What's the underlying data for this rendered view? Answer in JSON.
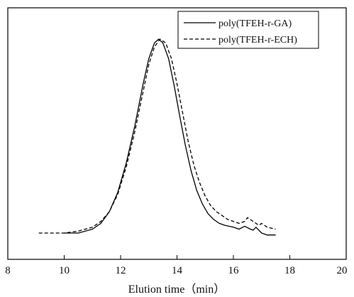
{
  "chart_data": {
    "type": "line",
    "title": "",
    "xlabel": "Elution time（min）",
    "ylabel": "",
    "xlim": [
      8,
      20
    ],
    "xticks": [
      8,
      10,
      12,
      14,
      16,
      18,
      20
    ],
    "tick_labels": [
      "8",
      "10",
      "12",
      "14",
      "16",
      "18",
      "20"
    ],
    "ylim": [
      0,
      1.05
    ],
    "grid": false,
    "legend": "top-right",
    "series": [
      {
        "name": "poly(TFEH-r-GA)",
        "style": "solid",
        "color": "#000000",
        "x": [
          10.0,
          10.5,
          11.0,
          11.3,
          11.6,
          11.9,
          12.2,
          12.5,
          12.8,
          13.0,
          13.2,
          13.35,
          13.5,
          13.7,
          13.9,
          14.1,
          14.3,
          14.5,
          14.7,
          14.9,
          15.1,
          15.3,
          15.5,
          15.7,
          16.0,
          16.2,
          16.4,
          16.6,
          16.7,
          16.8,
          17.0,
          17.2,
          17.5
        ],
        "y": [
          0.0,
          0.0,
          0.02,
          0.05,
          0.11,
          0.21,
          0.36,
          0.55,
          0.77,
          0.9,
          0.98,
          1.0,
          0.98,
          0.9,
          0.76,
          0.6,
          0.45,
          0.32,
          0.22,
          0.15,
          0.1,
          0.07,
          0.05,
          0.04,
          0.03,
          0.02,
          0.035,
          0.02,
          0.015,
          0.03,
          0.0,
          -0.01,
          -0.01
        ]
      },
      {
        "name": "poly(TFEH-r-ECH)",
        "style": "dashed",
        "color": "#000000",
        "x": [
          9.1,
          9.5,
          10.0,
          10.5,
          11.0,
          11.3,
          11.6,
          11.9,
          12.2,
          12.5,
          12.8,
          13.0,
          13.2,
          13.4,
          13.6,
          13.8,
          14.0,
          14.2,
          14.4,
          14.6,
          14.8,
          15.0,
          15.2,
          15.4,
          15.6,
          15.8,
          16.0,
          16.2,
          16.4,
          16.5,
          16.7,
          16.9,
          17.0,
          17.2,
          17.5
        ],
        "y": [
          0.0,
          0.0,
          0.0,
          0.01,
          0.03,
          0.06,
          0.11,
          0.2,
          0.34,
          0.52,
          0.73,
          0.87,
          0.96,
          1.0,
          0.98,
          0.9,
          0.77,
          0.62,
          0.47,
          0.35,
          0.26,
          0.19,
          0.14,
          0.11,
          0.09,
          0.07,
          0.06,
          0.05,
          0.06,
          0.08,
          0.06,
          0.04,
          0.05,
          0.03,
          0.02
        ]
      }
    ]
  }
}
